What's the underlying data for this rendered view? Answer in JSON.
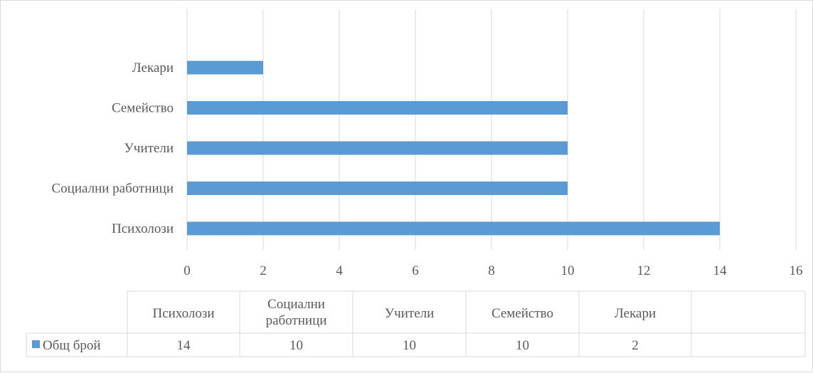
{
  "chart_data": {
    "type": "bar",
    "orientation": "horizontal",
    "categories": [
      "Психолози",
      "Социални работници",
      "Учители ",
      "Семейство",
      "Лекари"
    ],
    "series": [
      {
        "name": "Общ брой",
        "values": [
          14,
          10,
          10,
          10,
          2
        ],
        "color": "#5b9bd5"
      }
    ],
    "xlim": [
      0,
      16
    ],
    "x_ticks": [
      "0",
      "2",
      "4",
      "6",
      "8",
      "10",
      "12",
      "14",
      "16"
    ],
    "grid": true,
    "data_table": {
      "headers": [
        "Психолози",
        "Социални работници",
        "Учители",
        "Семейство",
        "Лекари",
        ""
      ],
      "row_label": "Общ брой",
      "values": [
        "14",
        "10",
        "10",
        "10",
        "2",
        ""
      ]
    }
  },
  "colors": {
    "bar": "#5b9bd5",
    "grid": "#d9d9d9",
    "text": "#595959"
  }
}
